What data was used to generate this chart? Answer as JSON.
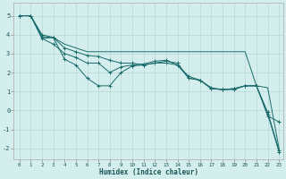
{
  "xlabel": "Humidex (Indice chaleur)",
  "background_color": "#d4eeed",
  "grid_color": "#b8d8d6",
  "line_color": "#1a6b6b",
  "xlim": [
    -0.5,
    23.4
  ],
  "ylim": [
    -2.6,
    5.7
  ],
  "yticks": [
    -2,
    -1,
    0,
    1,
    2,
    3,
    4,
    5
  ],
  "xticks": [
    0,
    1,
    2,
    3,
    4,
    5,
    6,
    7,
    8,
    9,
    10,
    11,
    12,
    13,
    14,
    15,
    16,
    17,
    18,
    19,
    20,
    21,
    22,
    23
  ],
  "series": [
    {
      "x": [
        0,
        1,
        2,
        3,
        4,
        5,
        6,
        7,
        8,
        9,
        10,
        11,
        12,
        13,
        14,
        15,
        16,
        17,
        18,
        19,
        20,
        21,
        22,
        23
      ],
      "y": [
        5.0,
        5.0,
        3.8,
        3.85,
        3.5,
        3.3,
        3.1,
        3.1,
        3.1,
        3.1,
        3.1,
        3.1,
        3.1,
        3.1,
        3.1,
        3.1,
        3.1,
        3.1,
        3.1,
        3.1,
        3.1,
        1.3,
        1.2,
        -2.0
      ],
      "marker": null
    },
    {
      "x": [
        0,
        1,
        2,
        3,
        4,
        5,
        6,
        7,
        8,
        9,
        10,
        11,
        12,
        13,
        14,
        15,
        16,
        17,
        18,
        19,
        20,
        21,
        22,
        23
      ],
      "y": [
        5.0,
        5.0,
        4.0,
        3.85,
        2.7,
        2.4,
        1.7,
        1.3,
        1.3,
        2.0,
        2.35,
        2.4,
        2.5,
        2.6,
        2.5,
        1.7,
        1.6,
        1.15,
        1.1,
        1.1,
        1.3,
        1.3,
        -0.3,
        -0.6
      ],
      "marker": "+"
    },
    {
      "x": [
        0,
        1,
        2,
        3,
        4,
        5,
        6,
        7,
        8,
        9,
        10,
        11,
        12,
        13,
        14,
        15,
        16,
        17,
        18,
        19,
        20,
        21,
        22,
        23
      ],
      "y": [
        5.0,
        5.0,
        3.8,
        3.5,
        3.0,
        2.8,
        2.5,
        2.5,
        2.0,
        2.3,
        2.4,
        2.45,
        2.6,
        2.65,
        2.4,
        1.7,
        1.6,
        1.15,
        1.1,
        1.15,
        1.3,
        1.3,
        -0.1,
        -2.1
      ],
      "marker": "+"
    },
    {
      "x": [
        0,
        1,
        2,
        3,
        4,
        5,
        6,
        7,
        8,
        9,
        10,
        11,
        12,
        13,
        14,
        15,
        16,
        17,
        18,
        19,
        20,
        21,
        22,
        23
      ],
      "y": [
        5.0,
        5.0,
        3.9,
        3.85,
        3.3,
        3.1,
        2.9,
        2.85,
        2.65,
        2.5,
        2.5,
        2.4,
        2.5,
        2.5,
        2.4,
        1.8,
        1.6,
        1.2,
        1.1,
        1.15,
        1.3,
        1.3,
        -0.2,
        -2.2
      ],
      "marker": "+"
    }
  ]
}
